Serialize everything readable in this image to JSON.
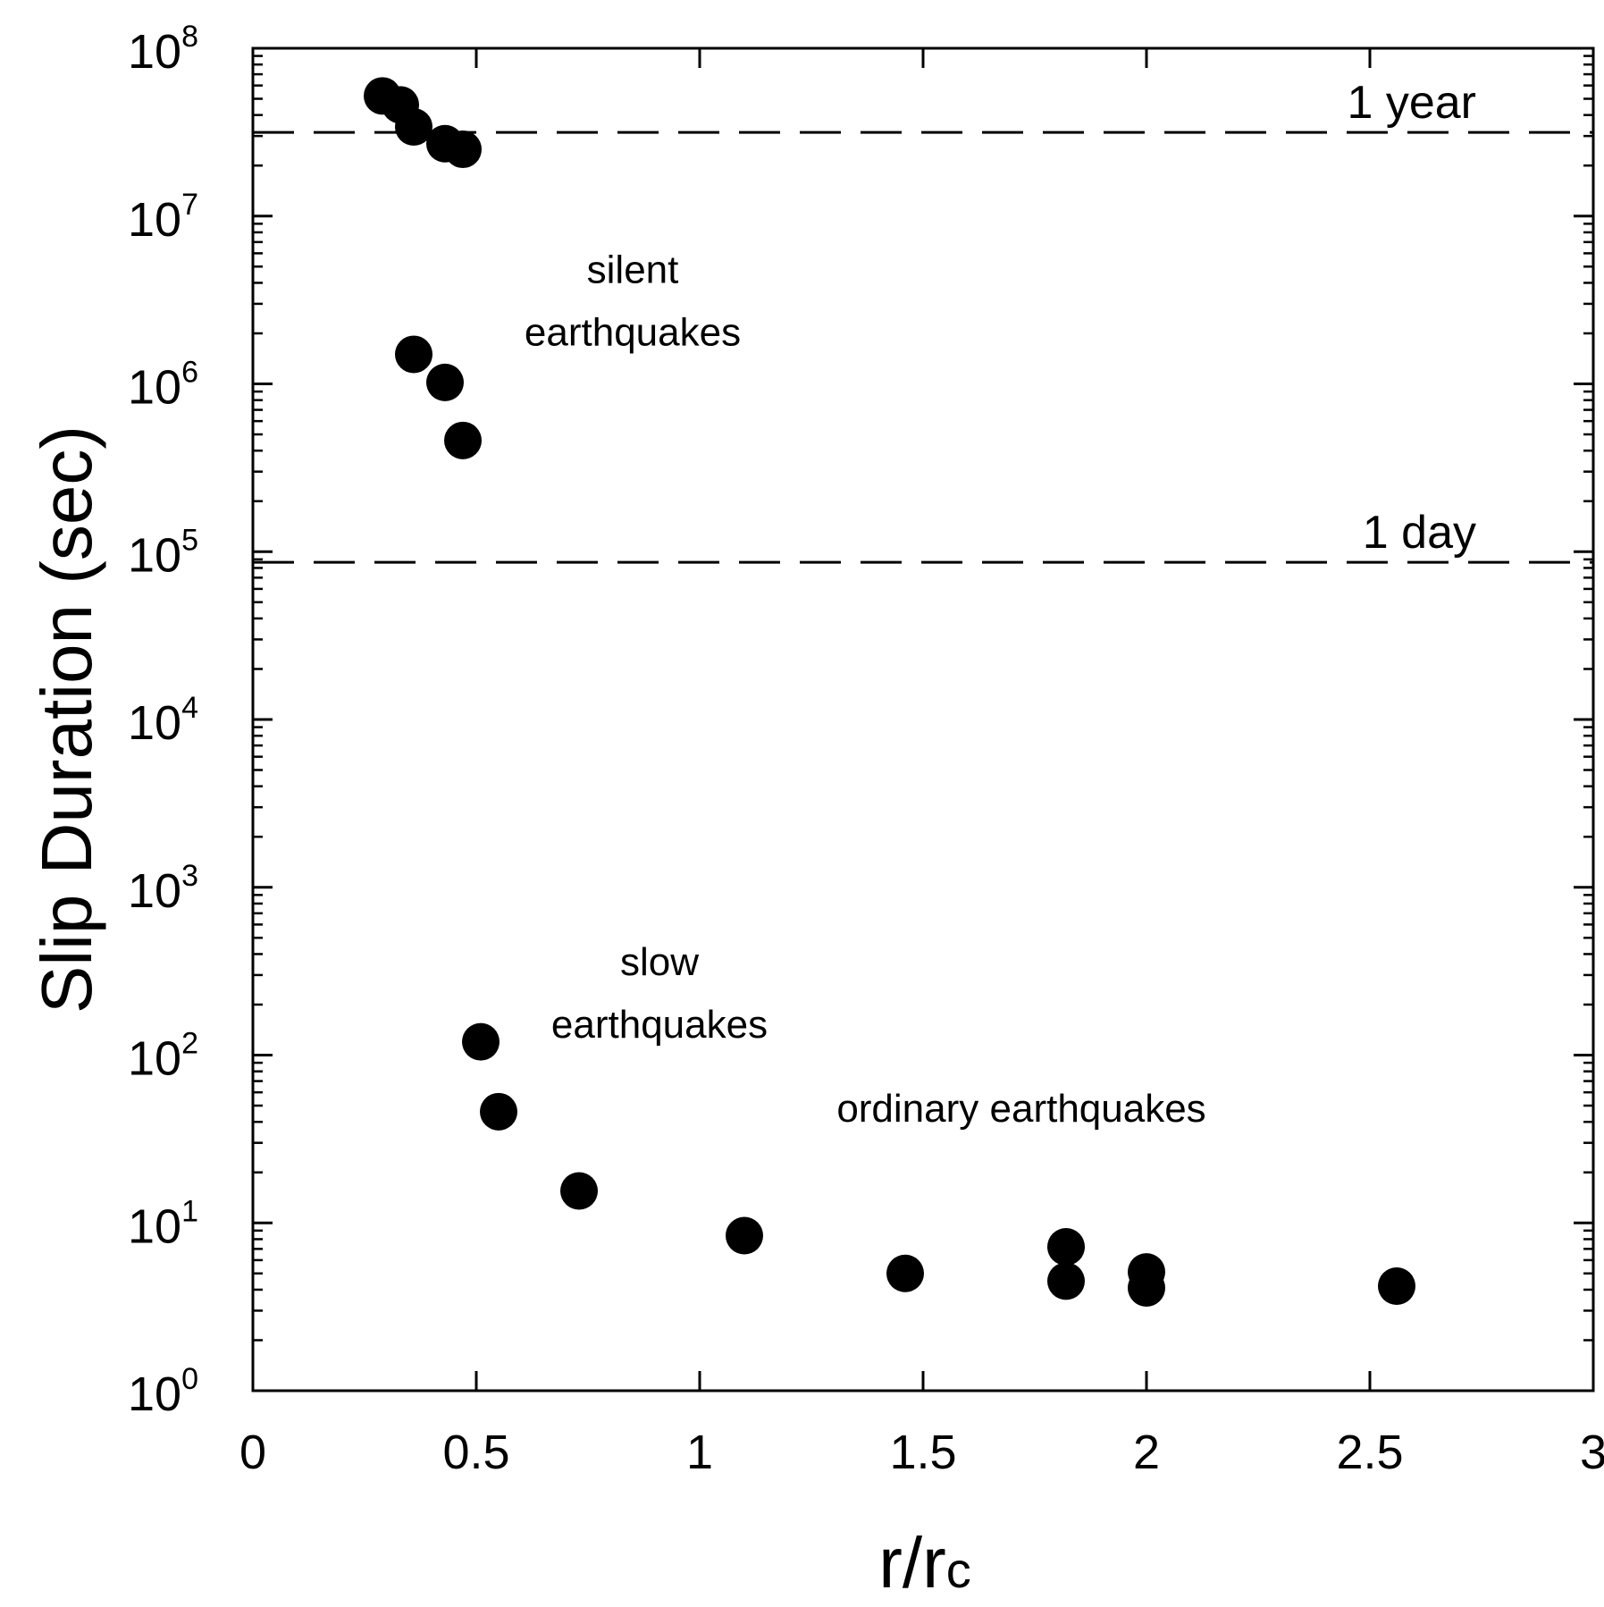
{
  "chart_data": {
    "type": "scatter",
    "xlabel": {
      "main": "r/r",
      "sub": "c"
    },
    "ylabel": "Slip Duration (sec)",
    "xlim": [
      0,
      3
    ],
    "ylim_log10": [
      0,
      8
    ],
    "y_scale": "log",
    "grid": false,
    "x_ticks": [
      {
        "value": 0,
        "label": "0"
      },
      {
        "value": 0.5,
        "label": "0.5"
      },
      {
        "value": 1,
        "label": "1"
      },
      {
        "value": 1.5,
        "label": "1.5"
      },
      {
        "value": 2,
        "label": "2"
      },
      {
        "value": 2.5,
        "label": "2.5"
      },
      {
        "value": 3,
        "label": "3"
      }
    ],
    "y_ticks": [
      {
        "value": 1,
        "base": "10",
        "exp": "0"
      },
      {
        "value": 10,
        "base": "10",
        "exp": "1"
      },
      {
        "value": 100,
        "base": "10",
        "exp": "2"
      },
      {
        "value": 1000,
        "base": "10",
        "exp": "3"
      },
      {
        "value": 10000,
        "base": "10",
        "exp": "4"
      },
      {
        "value": 100000,
        "base": "10",
        "exp": "5"
      },
      {
        "value": 1000000,
        "base": "10",
        "exp": "6"
      },
      {
        "value": 10000000,
        "base": "10",
        "exp": "7"
      },
      {
        "value": 100000000,
        "base": "10",
        "exp": "8"
      }
    ],
    "reference_lines": [
      {
        "label": "1 year",
        "y": 31536000
      },
      {
        "label": "1 day",
        "y": 86400
      }
    ],
    "annotations": [
      {
        "lines": [
          "silent",
          "earthquakes"
        ],
        "x": 0.85,
        "y": 4000000
      },
      {
        "lines": [
          "slow",
          "earthquakes"
        ],
        "x": 0.91,
        "y": 300
      },
      {
        "lines": [
          "ordinary earthquakes"
        ],
        "x": 1.72,
        "y": 40
      }
    ],
    "points": [
      {
        "x": 0.29,
        "y": 52000000
      },
      {
        "x": 0.33,
        "y": 46000000
      },
      {
        "x": 0.36,
        "y": 34000000
      },
      {
        "x": 0.43,
        "y": 27000000
      },
      {
        "x": 0.47,
        "y": 25000000
      },
      {
        "x": 0.36,
        "y": 1500000
      },
      {
        "x": 0.43,
        "y": 1020000
      },
      {
        "x": 0.47,
        "y": 460000
      },
      {
        "x": 0.51,
        "y": 120
      },
      {
        "x": 0.55,
        "y": 46
      },
      {
        "x": 0.73,
        "y": 15.5
      },
      {
        "x": 1.1,
        "y": 8.4
      },
      {
        "x": 1.46,
        "y": 5.0
      },
      {
        "x": 1.82,
        "y": 7.2
      },
      {
        "x": 1.82,
        "y": 4.5
      },
      {
        "x": 2.0,
        "y": 5.1
      },
      {
        "x": 2.0,
        "y": 4.1
      },
      {
        "x": 2.56,
        "y": 4.2
      }
    ]
  }
}
